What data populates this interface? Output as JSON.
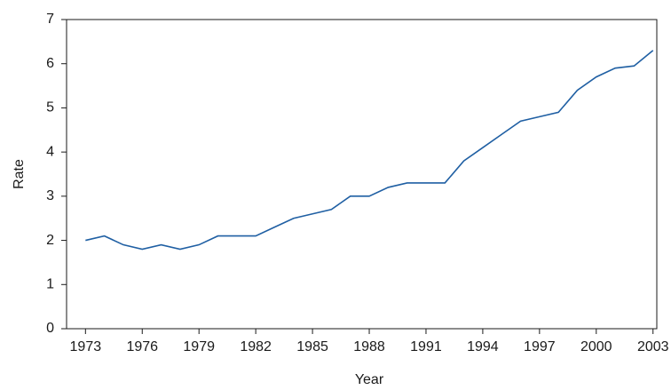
{
  "chart_data": {
    "type": "line",
    "x_label": "Year",
    "y_label": "Rate",
    "x": [
      1973,
      1974,
      1975,
      1976,
      1977,
      1978,
      1979,
      1980,
      1981,
      1982,
      1983,
      1984,
      1985,
      1986,
      1987,
      1988,
      1989,
      1990,
      1991,
      1992,
      1993,
      1994,
      1995,
      1996,
      1997,
      1998,
      1999,
      2000,
      2001,
      2002,
      2003
    ],
    "series": [
      {
        "name": "Rate",
        "color": "#1f5fa3",
        "values": [
          2.0,
          2.1,
          1.9,
          1.8,
          1.9,
          1.8,
          1.9,
          2.1,
          2.1,
          2.1,
          2.3,
          2.5,
          2.6,
          2.7,
          3.0,
          3.0,
          3.2,
          3.3,
          3.3,
          3.3,
          3.8,
          4.1,
          4.4,
          4.7,
          4.8,
          4.9,
          5.4,
          5.7,
          5.9,
          5.95,
          6.3
        ]
      }
    ],
    "xlim": [
      1972,
      2003.2
    ],
    "xticks": [
      1973,
      1976,
      1979,
      1982,
      1985,
      1988,
      1991,
      1994,
      1997,
      2000,
      2003
    ],
    "ylim": [
      0,
      7
    ],
    "yticks": [
      0,
      1,
      2,
      3,
      4,
      5,
      6,
      7
    ],
    "grid": false
  }
}
